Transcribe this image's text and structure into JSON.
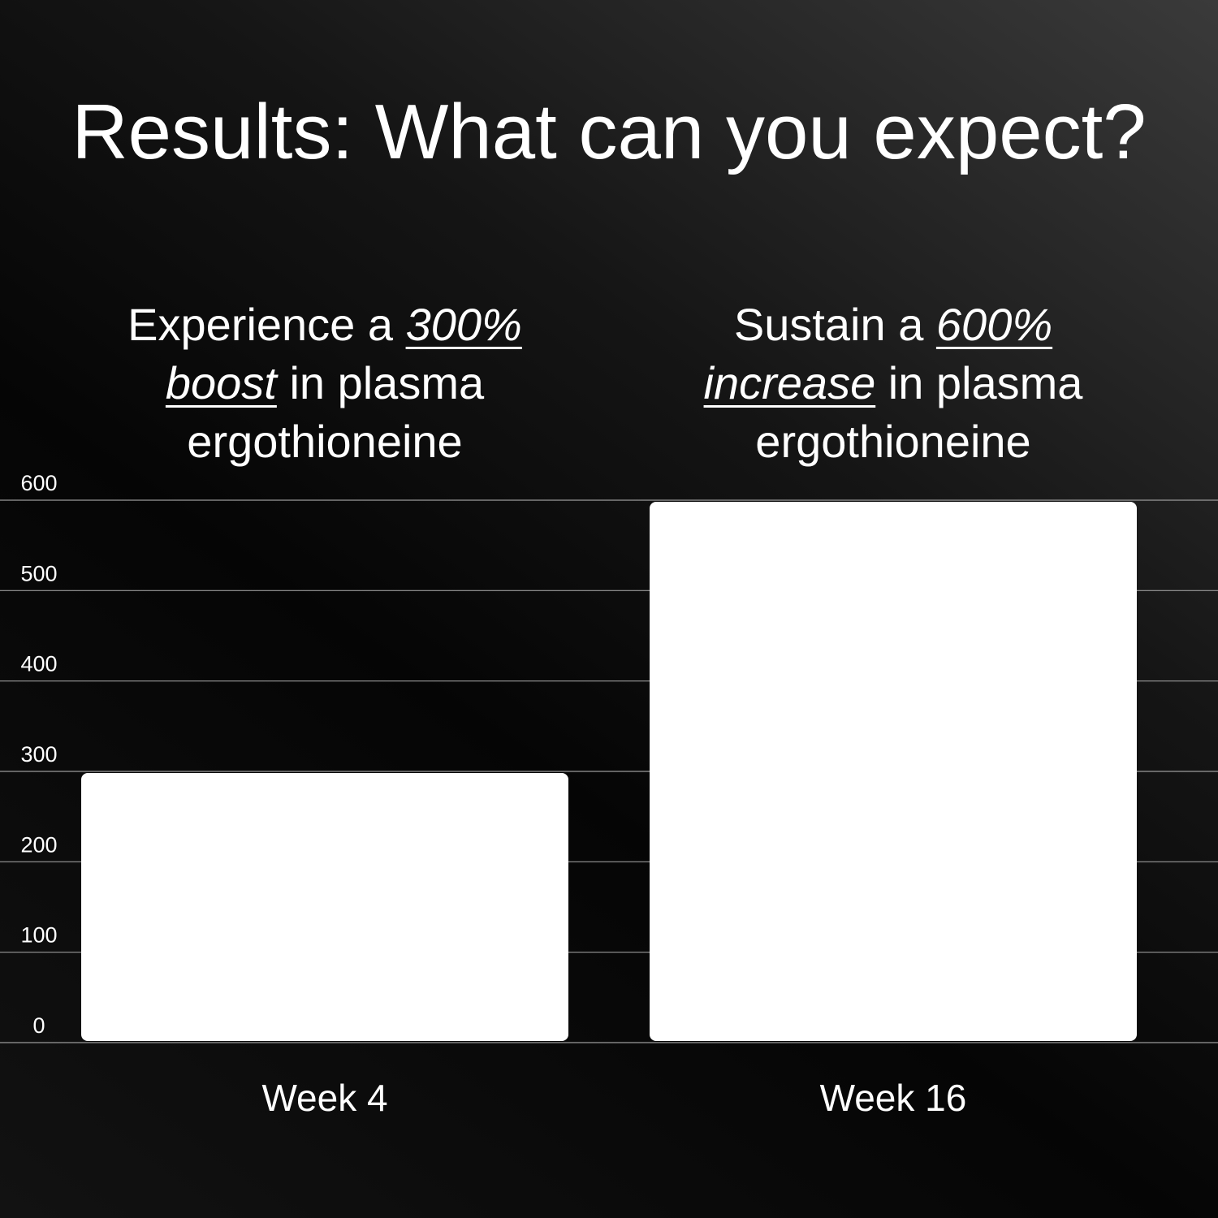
{
  "chart_data": {
    "type": "bar",
    "title": "Results: What can you expect?",
    "annotations": [
      {
        "lines": [
          [
            {
              "text": "Experience a"
            },
            {
              "text": "300%",
              "emphasis": true
            }
          ],
          [
            {
              "text": "boost",
              "emphasis": true
            },
            {
              "text": "in plasma"
            }
          ],
          [
            {
              "text": "ergothioneine"
            }
          ]
        ]
      },
      {
        "lines": [
          [
            {
              "text": "Sustain a"
            },
            {
              "text": "600%",
              "emphasis": true
            }
          ],
          [
            {
              "text": "increase",
              "emphasis": true
            },
            {
              "text": "in plasma"
            }
          ],
          [
            {
              "text": "ergothioneine"
            }
          ]
        ]
      }
    ],
    "categories": [
      "Week 4",
      "Week 16"
    ],
    "values": [
      300,
      600
    ],
    "color": "#ffffff",
    "ylim": [
      0,
      600
    ],
    "yticks": [
      0,
      100,
      200,
      300,
      400,
      500,
      600
    ],
    "grid": true
  }
}
